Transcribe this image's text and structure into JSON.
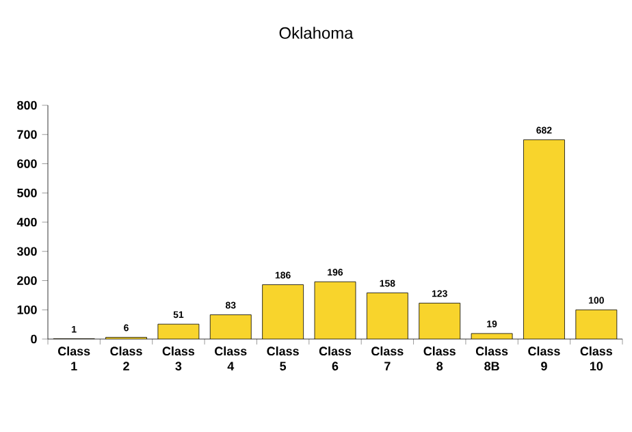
{
  "chart_data": {
    "type": "bar",
    "title": "Oklahoma",
    "categories": [
      "Class 1",
      "Class 2",
      "Class 3",
      "Class 4",
      "Class 5",
      "Class 6",
      "Class 7",
      "Class 8",
      "Class 8B",
      "Class 9",
      "Class 10"
    ],
    "values": [
      1,
      6,
      51,
      83,
      186,
      196,
      158,
      123,
      19,
      682,
      100
    ],
    "color": "#f8d42c",
    "ylim": [
      0,
      800
    ],
    "yticks": [
      0,
      100,
      200,
      300,
      400,
      500,
      600,
      700,
      800
    ],
    "data_labels": true
  }
}
